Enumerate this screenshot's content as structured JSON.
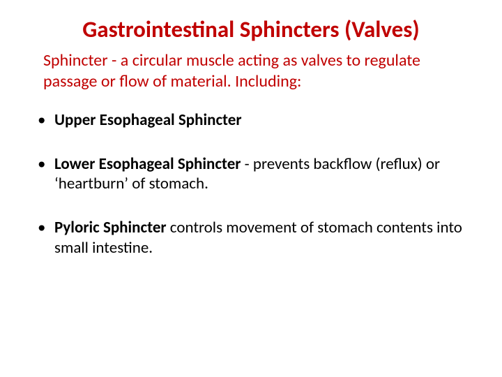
{
  "title": {
    "text": "Gastrointestinal Sphincters (Valves)",
    "color": "#c00000",
    "fontsize": 33,
    "fontweight": 700
  },
  "intro": {
    "text": "Sphincter - a circular muscle acting as valves to regulate passage or flow of material. Including:",
    "color": "#c00000",
    "fontsize": 24
  },
  "bullets": [
    {
      "bold": "Upper Esophageal Sphincter",
      "rest": ""
    },
    {
      "bold": "Lower Esophageal Sphincter",
      "rest": " - prevents backflow (reflux) or ‘heartburn’ of stomach."
    },
    {
      "bold": "Pyloric Sphincter",
      "rest": " controls movement of stomach contents into small intestine."
    }
  ],
  "body_color": "#000000",
  "body_fontsize": 23,
  "background_color": "#ffffff"
}
